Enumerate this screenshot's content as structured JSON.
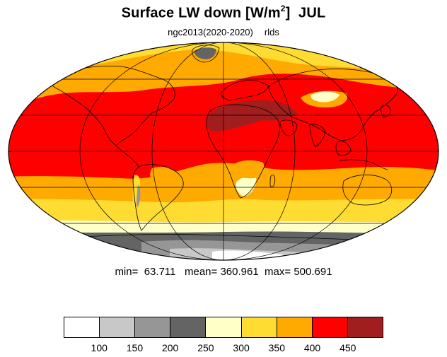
{
  "title": {
    "main": "Surface LW down [W/m",
    "sup": "2",
    "close": "]",
    "month": "JUL"
  },
  "subtitle": {
    "run": "ngc2013(2020-2020)",
    "variable": "rlds"
  },
  "stats": {
    "min_label": "min=",
    "min": "63.711",
    "mean_label": "mean=",
    "mean": "360.961",
    "max_label": "max=",
    "max": "500.691"
  },
  "colorbar": {
    "colors": [
      "#ffffff",
      "#c8c8c8",
      "#969696",
      "#646464",
      "#ffffc8",
      "#ffdc32",
      "#ffaa00",
      "#ff0000",
      "#a01e1e"
    ],
    "ticks": [
      "100",
      "150",
      "200",
      "250",
      "300",
      "350",
      "400",
      "450"
    ]
  },
  "map": {
    "projection": "mollweide",
    "ocean_field": "red-orange-yellow bands",
    "land_outline": "#000000"
  }
}
